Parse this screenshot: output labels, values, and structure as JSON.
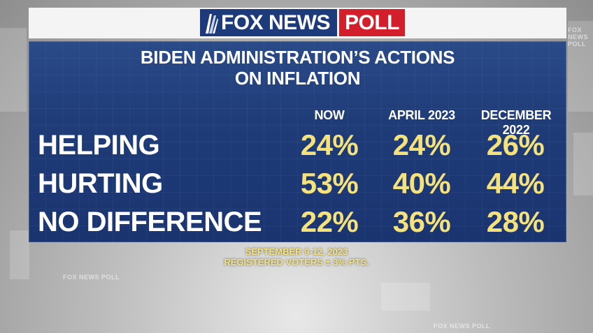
{
  "header": {
    "logo_fox_text": "FOX NEWS",
    "logo_poll_text": "POLL",
    "colors": {
      "fox_blue": "#1d3a7a",
      "poll_red": "#d21f2b",
      "panel_blue": "#1f3c78",
      "value_yellow": "#f5e27a"
    }
  },
  "title": {
    "line1": "BIDEN ADMINISTRATION’S ACTIONS",
    "line2": "ON INFLATION"
  },
  "table": {
    "columns": [
      "NOW",
      "APRIL 2023",
      "DECEMBER 2022"
    ],
    "rows": [
      {
        "label": "HELPING",
        "values": [
          "24%",
          "24%",
          "26%"
        ]
      },
      {
        "label": "HURTING",
        "values": [
          "53%",
          "40%",
          "44%"
        ]
      },
      {
        "label": "NO DIFFERENCE",
        "values": [
          "22%",
          "36%",
          "28%"
        ]
      }
    ]
  },
  "footer": {
    "dates": "SEPTEMBER 9-12, 2023",
    "sample": "REGISTERED VOTERS ± 3% PTS."
  },
  "background": {
    "watermark": "FOX NEWS POLL"
  }
}
